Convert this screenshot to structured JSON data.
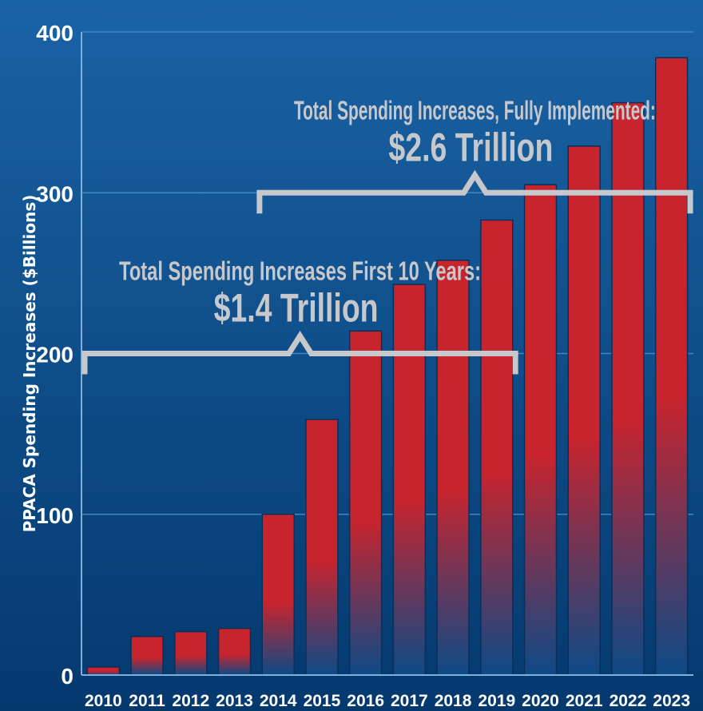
{
  "chart_data": {
    "type": "bar",
    "ylabel": "PPACA Spending Increases  ($Billions)",
    "xlabel": "",
    "title": "",
    "categories": [
      "2010",
      "2011",
      "2012",
      "2013",
      "2014",
      "2015",
      "2016",
      "2017",
      "2018",
      "2019",
      "2020",
      "2021",
      "2022",
      "2023"
    ],
    "values": [
      5,
      24,
      27,
      29,
      100,
      159,
      214,
      243,
      258,
      283,
      305,
      329,
      356,
      384
    ],
    "ylim": [
      0,
      400
    ],
    "yticks": [
      0,
      100,
      200,
      300,
      400
    ],
    "grid": true,
    "annotations": [
      {
        "line1": "Total Spending Increases First 10 Years:",
        "line2": "$1.4 Trillion",
        "span": [
          "2010",
          "2019"
        ],
        "level": 200
      },
      {
        "line1": "Total Spending Increases, Fully Implemented:",
        "line2": "$2.6 Trillion",
        "span": [
          "2014",
          "2023"
        ],
        "level": 300
      }
    ]
  },
  "colors": {
    "background_top": "#1a63a5",
    "background_bottom": "#04396e",
    "bar_top": "#c8242d",
    "bar_bottom": "#0d4a86",
    "bracket": "#c6c8cc",
    "gridline": "#3f86c6"
  }
}
